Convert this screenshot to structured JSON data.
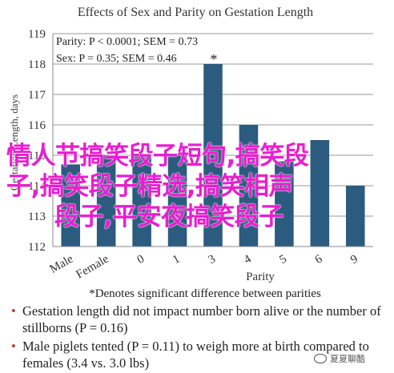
{
  "chart_data": {
    "type": "bar",
    "title": "Effects of Sex and Parity on Gestation Length",
    "ylabel": "Gestation Length, days",
    "xlabel": "Parity",
    "categories": [
      "Male",
      "Female",
      "0",
      "1",
      "3",
      "4",
      "5",
      "6",
      "9"
    ],
    "values": [
      114.7,
      115.0,
      115.0,
      115.0,
      118.0,
      116.0,
      114.8,
      115.5,
      114.0
    ],
    "ylim": [
      112,
      119
    ],
    "yticks": [
      "112",
      "113",
      "114",
      "115",
      "116",
      "117",
      "118",
      "119"
    ],
    "bar_color": "#2b5b7f",
    "grid": true,
    "annotations": {
      "parity": "Parity: P < 0.0001; SEM = 0.73",
      "sex": "Sex: P = 0.35; SEM = 0.46",
      "star": "*"
    },
    "footnote": "*Denotes significant difference between parities"
  },
  "bullets": [
    "Gestation length did not impact number born alive or the number of stillborns (P = 0.16)",
    "Male piglets tented (P = 0.11) to weigh more at birth compared to females (3.4 vs. 3.0 lbs)"
  ],
  "overlay_text": {
    "line1": "情人节搞笑段子短句,搞笑段",
    "line2": "子,搞笑段子精选,搞笑相声",
    "line3": "段子,平安夜搞笑段子"
  },
  "watermark": "夏夏聊酷"
}
